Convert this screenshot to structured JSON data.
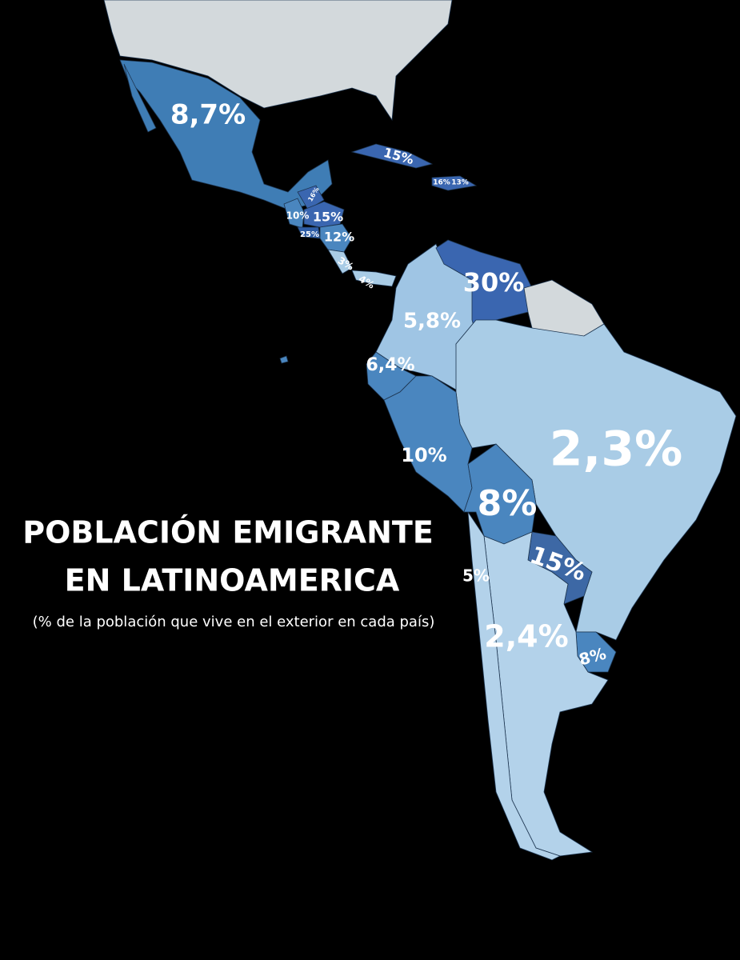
{
  "title": {
    "line1": "POBLACIÓN EMIGRANTE",
    "line2": "EN LATINOAMERICA"
  },
  "subtitle": "(% de la población que vive en el exterior en cada país)",
  "labels": [
    "8,7%",
    "15%",
    "16%",
    "13%",
    "16%",
    "10%",
    "15%",
    "25%",
    "12%",
    "3%",
    "4%",
    "30%",
    "5,8%",
    "6,4%",
    "2,3%",
    "10%",
    "8%",
    "15%",
    "5%",
    "2,4%",
    "8%"
  ]
}
